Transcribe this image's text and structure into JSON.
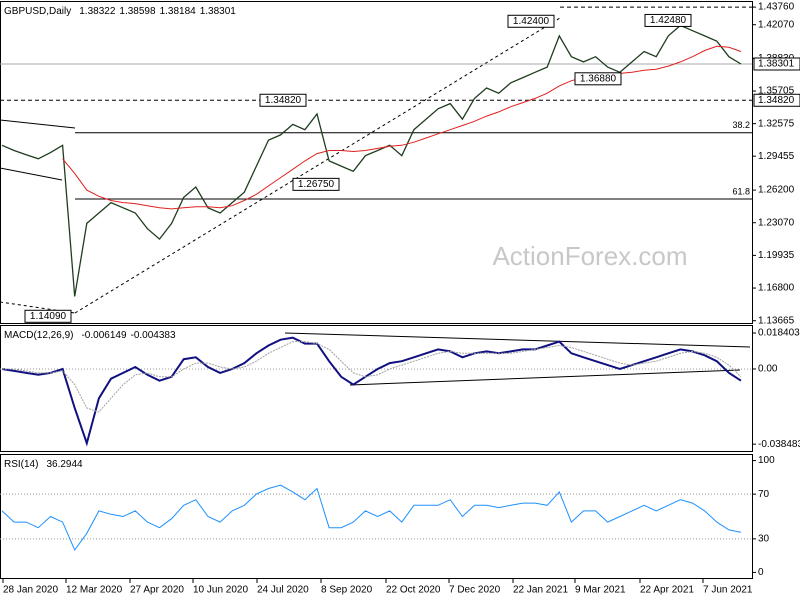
{
  "chart_data": [
    {
      "type": "line",
      "title": "GBPUSD,Daily",
      "title_values": [
        1.38322,
        1.38598,
        1.38184,
        1.38301
      ],
      "watermark": "ActionForex.com",
      "xtick_labels": [
        "28 Jan 2020",
        "12 Mar 2020",
        "27 Apr 2020",
        "10 Jun 2020",
        "24 Jul 2020",
        "8 Sep 2020",
        "22 Oct 2020",
        "7 Dec 2020",
        "22 Jan 2021",
        "9 Mar 2021",
        "22 Apr 2021",
        "7 Jun 2021"
      ],
      "ylim": [
        1.1335,
        1.4425
      ],
      "yticks": [
        {
          "value": 1.4376,
          "label": "1.43760"
        },
        {
          "value": 1.4207,
          "label": "1.42070"
        },
        {
          "value": 1.3883,
          "label": "1.38830"
        },
        {
          "value": 1.35705,
          "label": "1.35705"
        },
        {
          "value": 1.32575,
          "label": "1.32575"
        },
        {
          "value": 1.29455,
          "label": "1.29455"
        },
        {
          "value": 1.262,
          "label": "1.26200"
        },
        {
          "value": 1.2307,
          "label": "1.23070"
        },
        {
          "value": 1.19935,
          "label": "1.19935"
        },
        {
          "value": 1.168,
          "label": "1.16800"
        },
        {
          "value": 1.13665,
          "label": "1.13665"
        }
      ],
      "current_price": {
        "value": 1.38301,
        "label": "1.38301"
      },
      "levels": [
        {
          "value": 1.3482,
          "label": "1.34820"
        }
      ],
      "fib_levels": [
        {
          "value": 1.317,
          "label": "38.2"
        },
        {
          "value": 1.2535,
          "label": "61.8"
        }
      ],
      "annotations": [
        {
          "value": 1.424,
          "label": "1.42400"
        },
        {
          "value": 1.4248,
          "label": "1.42480"
        },
        {
          "value": 1.3482,
          "label": "1.34820"
        },
        {
          "value": 1.2675,
          "label": "1.26750"
        },
        {
          "value": 1.3688,
          "label": "1.36880"
        },
        {
          "value": 1.1409,
          "label": "1.14090"
        }
      ],
      "series": [
        {
          "color": "#1f3d1f",
          "values": [
            1.305,
            1.3,
            1.296,
            1.292,
            1.298,
            1.305,
            1.16,
            1.23,
            1.24,
            1.25,
            1.245,
            1.24,
            1.225,
            1.215,
            1.23,
            1.255,
            1.265,
            1.245,
            1.24,
            1.25,
            1.26,
            1.285,
            1.31,
            1.315,
            1.325,
            1.32,
            1.335,
            1.29,
            1.285,
            1.28,
            1.295,
            1.3,
            1.305,
            1.295,
            1.32,
            1.33,
            1.34,
            1.345,
            1.33,
            1.35,
            1.36,
            1.355,
            1.365,
            1.37,
            1.375,
            1.38,
            1.41,
            1.39,
            1.385,
            1.39,
            1.38,
            1.375,
            1.385,
            1.395,
            1.39,
            1.41,
            1.42,
            1.415,
            1.41,
            1.405,
            1.39,
            1.383
          ]
        },
        {
          "color": "#e02020",
          "values": [
            null,
            null,
            null,
            null,
            null,
            1.292,
            1.278,
            1.262,
            1.256,
            1.252,
            1.25,
            1.249,
            1.247,
            1.245,
            1.244,
            1.245,
            1.246,
            1.246,
            1.245,
            1.247,
            1.252,
            1.258,
            1.266,
            1.274,
            1.282,
            1.29,
            1.297,
            1.3,
            1.3,
            1.299,
            1.3,
            1.302,
            1.304,
            1.305,
            1.308,
            1.312,
            1.316,
            1.32,
            1.324,
            1.328,
            1.333,
            1.337,
            1.342,
            1.346,
            1.35,
            1.355,
            1.362,
            1.367,
            1.37,
            1.372,
            1.373,
            1.374,
            1.375,
            1.377,
            1.378,
            1.381,
            1.385,
            1.39,
            1.396,
            1.4,
            1.399,
            1.395
          ]
        }
      ]
    },
    {
      "type": "line",
      "title": "MACD(12,26,9)",
      "title_values": [
        -0.006149,
        -0.004383
      ],
      "ylim": [
        -0.0425,
        0.022
      ],
      "yticks": [
        0.018403,
        {
          "value": 0,
          "label": "0.00"
        },
        -0.038483
      ],
      "series": [
        {
          "color": "#101080",
          "values": [
            0,
            -0.001,
            -0.002,
            -0.003,
            -0.002,
            0,
            -0.02,
            -0.038,
            -0.015,
            -0.005,
            -0.002,
            0.001,
            -0.003,
            -0.006,
            -0.004,
            0.005,
            0.006,
            0.001,
            -0.002,
            0,
            0.003,
            0.008,
            0.012,
            0.015,
            0.016,
            0.013,
            0.013,
            0.004,
            -0.004,
            -0.008,
            -0.004,
            0,
            0.003,
            0.004,
            0.006,
            0.008,
            0.01,
            0.009,
            0.006,
            0.008,
            0.009,
            0.008,
            0.009,
            0.01,
            0.01,
            0.012,
            0.014,
            0.008,
            0.006,
            0.004,
            0.002,
            0,
            0.002,
            0.004,
            0.006,
            0.008,
            0.01,
            0.009,
            0.007,
            0.004,
            -0.002,
            -0.006
          ]
        },
        {
          "color": "#a0a0a0",
          "values": [
            0,
            0,
            -0.001,
            -0.002,
            -0.002,
            -0.001,
            -0.008,
            -0.02,
            -0.022,
            -0.015,
            -0.008,
            -0.003,
            -0.002,
            -0.004,
            -0.004,
            0,
            0.003,
            0.003,
            0.001,
            0,
            0.001,
            0.004,
            0.008,
            0.011,
            0.014,
            0.014,
            0.013,
            0.01,
            0.004,
            -0.002,
            -0.004,
            -0.003,
            0,
            0.002,
            0.004,
            0.006,
            0.008,
            0.009,
            0.008,
            0.008,
            0.008,
            0.008,
            0.008,
            0.009,
            0.01,
            0.011,
            0.012,
            0.011,
            0.009,
            0.007,
            0.005,
            0.003,
            0.002,
            0.003,
            0.004,
            0.006,
            0.008,
            0.009,
            0.008,
            0.006,
            0.002,
            -0.004
          ]
        }
      ]
    },
    {
      "type": "line",
      "title": "RSI(14)",
      "title_values": [
        36.2944
      ],
      "ylim": [
        -5,
        105
      ],
      "yticks": [
        100,
        70,
        30,
        0
      ],
      "guides": [
        70,
        30
      ],
      "series": [
        {
          "color": "#1e90ff",
          "values": [
            55,
            45,
            45,
            40,
            50,
            45,
            20,
            35,
            55,
            52,
            50,
            55,
            45,
            40,
            48,
            60,
            65,
            50,
            45,
            55,
            60,
            70,
            75,
            78,
            72,
            65,
            75,
            40,
            40,
            45,
            55,
            50,
            55,
            45,
            60,
            60,
            60,
            65,
            50,
            60,
            60,
            58,
            60,
            62,
            62,
            60,
            72,
            45,
            55,
            55,
            45,
            50,
            55,
            60,
            55,
            60,
            65,
            62,
            55,
            45,
            38,
            36
          ]
        }
      ]
    }
  ]
}
